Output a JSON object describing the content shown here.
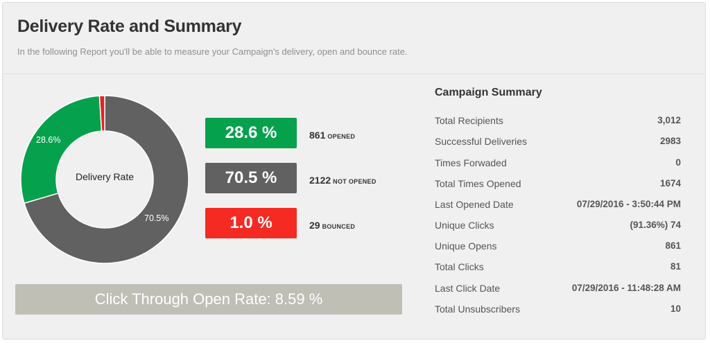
{
  "header": {
    "title": "Delivery Rate and Summary",
    "subtitle": "In the following Report you'll be able to measure your Campaign's delivery, open and bounce rate."
  },
  "donut": {
    "center_label": "Delivery Rate",
    "opened_label": "28.6%",
    "not_opened_label": "70.5%"
  },
  "chart_data": {
    "type": "pie",
    "subtype": "donut",
    "title": "Delivery Rate",
    "slices": [
      {
        "label": "Opened",
        "value": 28.6,
        "color": "#06a14d"
      },
      {
        "label": "Not Opened",
        "value": 70.5,
        "color": "#616161"
      },
      {
        "label": "Bounced",
        "value": 1.0,
        "color": "#ed1c24"
      }
    ]
  },
  "rates": [
    {
      "percent": "28.6 %",
      "count": "861",
      "caption": "OPENED",
      "color": "#06a14d"
    },
    {
      "percent": "70.5 %",
      "count": "2122",
      "caption": "NOT OPENED",
      "color": "#616161"
    },
    {
      "percent": "1.0 %",
      "count": "29",
      "caption": "BOUNCED",
      "color": "#f52a22"
    }
  ],
  "ctr": {
    "text": "Click Through Open Rate: 8.59 %"
  },
  "summary": {
    "title": "Campaign Summary",
    "rows": [
      {
        "label": "Total Recipients",
        "value": "3,012"
      },
      {
        "label": "Successful Deliveries",
        "value": "2983"
      },
      {
        "label": "Times Forwaded",
        "value": "0"
      },
      {
        "label": "Total Times Opened",
        "value": "1674"
      },
      {
        "label": "Last Opened Date",
        "value": "07/29/2016 - 3:50:44 PM"
      },
      {
        "label": "Unique Clicks",
        "value": "(91.36%) 74"
      },
      {
        "label": "Unique Opens",
        "value": "861"
      },
      {
        "label": "Total Clicks",
        "value": "81"
      },
      {
        "label": "Last Click Date",
        "value": "07/29/2016 - 11:48:28 AM"
      },
      {
        "label": "Total Unsubscribers",
        "value": "10"
      }
    ]
  }
}
